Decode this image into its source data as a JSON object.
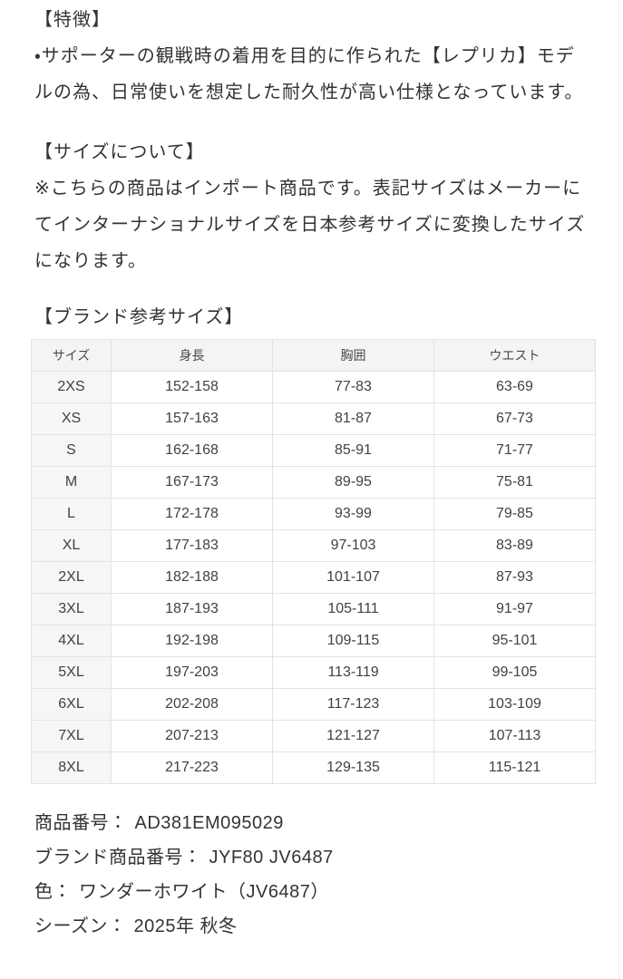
{
  "colors": {
    "page_bg": "#ffffff",
    "text": "#333333",
    "table_border": "#e3e3e4",
    "table_header_bg": "#f4f4f5",
    "table_label_bg": "#f6f6f7",
    "table_text": "#414141",
    "table_header_text": "#4a4a4a",
    "edge_line": "#ececec"
  },
  "features": {
    "heading": "【特徴】",
    "body": "・サポーターの観戦時の着用を目的に作られた【レプリカ】モデルの為、日常使いを想定した耐久性が高い仕様となっています。"
  },
  "size_note": {
    "heading": "【サイズについて】",
    "body": "※こちらの商品はインポート商品です。表記サイズはメーカーにてインターナショナルサイズを日本参考サイズに変換したサイズになります。"
  },
  "size_table": {
    "heading": "【ブランド参考サイズ】",
    "columns": [
      "サイズ",
      "身長",
      "胸囲",
      "ウエスト"
    ],
    "rows": [
      [
        "2XS",
        "152-158",
        "77-83",
        "63-69"
      ],
      [
        "XS",
        "157-163",
        "81-87",
        "67-73"
      ],
      [
        "S",
        "162-168",
        "85-91",
        "71-77"
      ],
      [
        "M",
        "167-173",
        "89-95",
        "75-81"
      ],
      [
        "L",
        "172-178",
        "93-99",
        "79-85"
      ],
      [
        "XL",
        "177-183",
        "97-103",
        "83-89"
      ],
      [
        "2XL",
        "182-188",
        "101-107",
        "87-93"
      ],
      [
        "3XL",
        "187-193",
        "105-111",
        "91-97"
      ],
      [
        "4XL",
        "192-198",
        "109-115",
        "95-101"
      ],
      [
        "5XL",
        "197-203",
        "113-119",
        "99-105"
      ],
      [
        "6XL",
        "202-208",
        "117-123",
        "103-109"
      ],
      [
        "7XL",
        "207-213",
        "121-127",
        "107-113"
      ],
      [
        "8XL",
        "217-223",
        "129-135",
        "115-121"
      ]
    ]
  },
  "product_details": {
    "items": [
      {
        "label": "商品番号：",
        "value": "AD381EM095029"
      },
      {
        "label": "ブランド商品番号：",
        "value": "JYF80 JV6487"
      },
      {
        "label": "色：",
        "value": "ワンダーホワイト（JV6487）"
      },
      {
        "label": "シーズン：",
        "value": "2025年 秋冬"
      }
    ]
  }
}
